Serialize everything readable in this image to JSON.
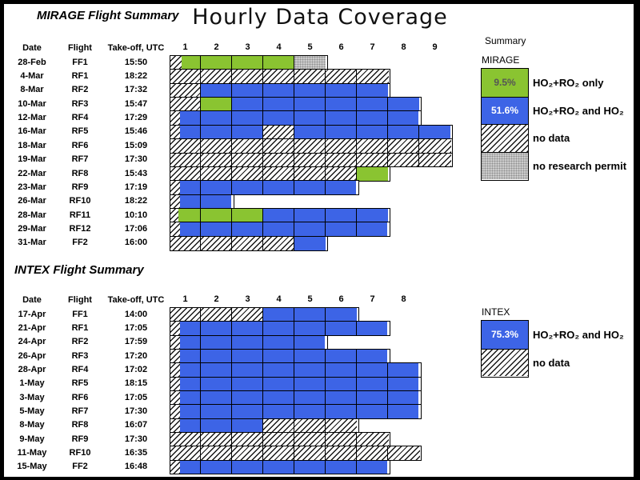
{
  "chart_title": "Hourly Data Coverage",
  "summary_label": "Summary",
  "colors": {
    "ho2ro2_only_green": "#8AC431",
    "ho2ro2_and_ho2_blue": "#3D64E6",
    "no_data_pattern": "black diagonal hatch on white",
    "no_research_permit_pattern": "gray stipple #CBCBCB",
    "border_black": "#000000"
  },
  "category_meanings": {
    "only": "HO₂+RO₂ only",
    "both": "HO₂+RO₂ and HO₂",
    "nodata": "no data",
    "permit": "no research permit"
  },
  "chart_data": [
    {
      "type": "heatmap",
      "heading": "MIRAGE Flight Summary",
      "columns": [
        "Date",
        "Flight",
        "Take-off, UTC"
      ],
      "hours": [
        "1",
        "2",
        "3",
        "4",
        "5",
        "6",
        "7",
        "8",
        "9"
      ],
      "xlabel_unit": "hour of flight",
      "flights": [
        {
          "date": "28-Feb",
          "flight": "FF1",
          "takeoff": "15:50",
          "segments": [
            {
              "type": "nodata",
              "from": 0,
              "to": 0.4
            },
            {
              "type": "only",
              "from": 0.4,
              "to": 4
            },
            {
              "type": "permit",
              "from": 4,
              "to": 5
            }
          ]
        },
        {
          "date": "4-Mar",
          "flight": "RF1",
          "takeoff": "18:22",
          "segments": [
            {
              "type": "nodata",
              "from": 0,
              "to": 7
            }
          ]
        },
        {
          "date": "8-Mar",
          "flight": "RF2",
          "takeoff": "17:32",
          "segments": [
            {
              "type": "nodata",
              "from": 0,
              "to": 1
            },
            {
              "type": "both",
              "from": 1,
              "to": 7
            }
          ]
        },
        {
          "date": "10-Mar",
          "flight": "RF3",
          "takeoff": "15:47",
          "segments": [
            {
              "type": "nodata",
              "from": 0,
              "to": 1
            },
            {
              "type": "only",
              "from": 1,
              "to": 2
            },
            {
              "type": "both",
              "from": 2,
              "to": 8
            }
          ]
        },
        {
          "date": "12-Mar",
          "flight": "RF4",
          "takeoff": "17:29",
          "segments": [
            {
              "type": "nodata",
              "from": 0,
              "to": 0.35
            },
            {
              "type": "both",
              "from": 0.35,
              "to": 8
            }
          ]
        },
        {
          "date": "16-Mar",
          "flight": "RF5",
          "takeoff": "15:46",
          "segments": [
            {
              "type": "nodata",
              "from": 0,
              "to": 0.35
            },
            {
              "type": "both",
              "from": 0.35,
              "to": 3
            },
            {
              "type": "nodata",
              "from": 3,
              "to": 4
            },
            {
              "type": "both",
              "from": 4,
              "to": 9
            }
          ]
        },
        {
          "date": "18-Mar",
          "flight": "RF6",
          "takeoff": "15:09",
          "segments": [
            {
              "type": "nodata",
              "from": 0,
              "to": 9
            }
          ]
        },
        {
          "date": "19-Mar",
          "flight": "RF7",
          "takeoff": "17:30",
          "segments": [
            {
              "type": "nodata",
              "from": 0,
              "to": 9
            }
          ]
        },
        {
          "date": "22-Mar",
          "flight": "RF8",
          "takeoff": "15:43",
          "segments": [
            {
              "type": "nodata",
              "from": 0,
              "to": 6
            },
            {
              "type": "only",
              "from": 6,
              "to": 7
            }
          ]
        },
        {
          "date": "23-Mar",
          "flight": "RF9",
          "takeoff": "17:19",
          "segments": [
            {
              "type": "nodata",
              "from": 0,
              "to": 0.35
            },
            {
              "type": "both",
              "from": 0.35,
              "to": 6
            }
          ]
        },
        {
          "date": "26-Mar",
          "flight": "RF10",
          "takeoff": "18:22",
          "segments": [
            {
              "type": "nodata",
              "from": 0,
              "to": 0.35
            },
            {
              "type": "both",
              "from": 0.35,
              "to": 2
            }
          ]
        },
        {
          "date": "28-Mar",
          "flight": "RF11",
          "takeoff": "10:10",
          "segments": [
            {
              "type": "nodata",
              "from": 0,
              "to": 0.3
            },
            {
              "type": "only",
              "from": 0.3,
              "to": 3
            },
            {
              "type": "both",
              "from": 3,
              "to": 7
            }
          ]
        },
        {
          "date": "29-Mar",
          "flight": "RF12",
          "takeoff": "17:06",
          "segments": [
            {
              "type": "nodata",
              "from": 0,
              "to": 0.35
            },
            {
              "type": "both",
              "from": 0.35,
              "to": 7
            }
          ]
        },
        {
          "date": "31-Mar",
          "flight": "FF2",
          "takeoff": "16:00",
          "segments": [
            {
              "type": "nodata",
              "from": 0,
              "to": 4
            },
            {
              "type": "both",
              "from": 4,
              "to": 5
            }
          ]
        }
      ],
      "legend": {
        "name": "MIRAGE",
        "entries": [
          {
            "type": "only",
            "pct": "9.5%",
            "label": "HO₂+RO₂ only"
          },
          {
            "type": "both",
            "pct": "51.6%",
            "label": "HO₂+RO₂ and HO₂"
          },
          {
            "type": "nodata",
            "pct": "",
            "label": "no data"
          },
          {
            "type": "permit",
            "pct": "",
            "label": "no research permit"
          }
        ]
      }
    },
    {
      "type": "heatmap",
      "heading": "INTEX Flight Summary",
      "columns": [
        "Date",
        "Flight",
        "Take-off, UTC"
      ],
      "hours": [
        "1",
        "2",
        "3",
        "4",
        "5",
        "6",
        "7",
        "8"
      ],
      "xlabel_unit": "hour of flight",
      "flights": [
        {
          "date": "17-Apr",
          "flight": "FF1",
          "takeoff": "14:00",
          "segments": [
            {
              "type": "nodata",
              "from": 0,
              "to": 3
            },
            {
              "type": "both",
              "from": 3,
              "to": 6
            }
          ]
        },
        {
          "date": "21-Apr",
          "flight": "RF1",
          "takeoff": "17:05",
          "segments": [
            {
              "type": "nodata",
              "from": 0,
              "to": 0.35
            },
            {
              "type": "both",
              "from": 0.35,
              "to": 7
            }
          ]
        },
        {
          "date": "24-Apr",
          "flight": "RF2",
          "takeoff": "17:59",
          "segments": [
            {
              "type": "nodata",
              "from": 0,
              "to": 0.35
            },
            {
              "type": "both",
              "from": 0.35,
              "to": 5
            }
          ]
        },
        {
          "date": "26-Apr",
          "flight": "RF3",
          "takeoff": "17:20",
          "segments": [
            {
              "type": "nodata",
              "from": 0,
              "to": 0.35
            },
            {
              "type": "both",
              "from": 0.35,
              "to": 7
            }
          ]
        },
        {
          "date": "28-Apr",
          "flight": "RF4",
          "takeoff": "17:02",
          "segments": [
            {
              "type": "nodata",
              "from": 0,
              "to": 0.35
            },
            {
              "type": "both",
              "from": 0.35,
              "to": 8
            }
          ]
        },
        {
          "date": "1-May",
          "flight": "RF5",
          "takeoff": "18:15",
          "segments": [
            {
              "type": "nodata",
              "from": 0,
              "to": 0.35
            },
            {
              "type": "both",
              "from": 0.35,
              "to": 8
            }
          ]
        },
        {
          "date": "3-May",
          "flight": "RF6",
          "takeoff": "17:05",
          "segments": [
            {
              "type": "nodata",
              "from": 0,
              "to": 0.35
            },
            {
              "type": "both",
              "from": 0.35,
              "to": 8
            }
          ]
        },
        {
          "date": "5-May",
          "flight": "RF7",
          "takeoff": "17:30",
          "segments": [
            {
              "type": "nodata",
              "from": 0,
              "to": 0.35
            },
            {
              "type": "both",
              "from": 0.35,
              "to": 8
            }
          ]
        },
        {
          "date": "8-May",
          "flight": "RF8",
          "takeoff": "16:07",
          "segments": [
            {
              "type": "nodata",
              "from": 0,
              "to": 0.35
            },
            {
              "type": "both",
              "from": 0.35,
              "to": 3
            },
            {
              "type": "nodata",
              "from": 3,
              "to": 6
            }
          ]
        },
        {
          "date": "9-May",
          "flight": "RF9",
          "takeoff": "17:30",
          "segments": [
            {
              "type": "nodata",
              "from": 0,
              "to": 7
            }
          ]
        },
        {
          "date": "11-May",
          "flight": "RF10",
          "takeoff": "16:35",
          "segments": [
            {
              "type": "nodata",
              "from": 0,
              "to": 8
            }
          ]
        },
        {
          "date": "15-May",
          "flight": "FF2",
          "takeoff": "16:48",
          "segments": [
            {
              "type": "nodata",
              "from": 0,
              "to": 0.35
            },
            {
              "type": "both",
              "from": 0.35,
              "to": 7
            }
          ]
        }
      ],
      "legend": {
        "name": "INTEX",
        "entries": [
          {
            "type": "both",
            "pct": "75.3%",
            "label": "HO₂+RO₂ and HO₂"
          },
          {
            "type": "nodata",
            "pct": "",
            "label": "no data"
          }
        ]
      }
    }
  ]
}
